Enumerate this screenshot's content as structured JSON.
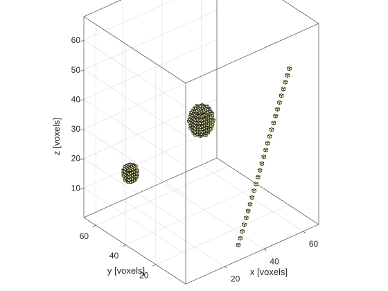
{
  "chart_data": {
    "type": "scatter",
    "title": "",
    "xlabel": "x [voxels]",
    "ylabel": "y [voxels]",
    "zlabel": "z [voxels]",
    "xlim": [
      0,
      68
    ],
    "ylim": [
      0,
      68
    ],
    "zlim": [
      0,
      68
    ],
    "xticks": [
      20,
      40,
      60
    ],
    "yticks": [
      20,
      40,
      60
    ],
    "zticks": [
      10,
      20,
      30,
      40,
      50,
      60
    ],
    "grid": true,
    "view": "3d-isometric",
    "marker_color": "#fdfdb0",
    "edge_color": "#1a1a1a",
    "objects": [
      {
        "shape": "sphere",
        "center": [
          10,
          50,
          18
        ],
        "radius": 3
      },
      {
        "shape": "sphere",
        "center": [
          34,
          34,
          34
        ],
        "radius": 5
      },
      {
        "shape": "line",
        "x": [
          30,
          31,
          32,
          33,
          34,
          35,
          36,
          37,
          38,
          39,
          40,
          41,
          42,
          43,
          44,
          45,
          46,
          47,
          48,
          49,
          50,
          51,
          52,
          53,
          54,
          55,
          56
        ],
        "y": [
          4,
          4,
          4,
          4,
          4,
          4,
          4,
          4,
          4,
          4,
          4,
          4,
          4,
          4,
          4,
          4,
          4,
          4,
          4,
          4,
          4,
          4,
          4,
          4,
          4,
          4,
          4
        ],
        "z": [
          3,
          5,
          7,
          9,
          11,
          13,
          15,
          17,
          19,
          21,
          23,
          25,
          27,
          29,
          31,
          33,
          35,
          37,
          39,
          41,
          43,
          45,
          47,
          49,
          51,
          53,
          55
        ]
      }
    ]
  }
}
